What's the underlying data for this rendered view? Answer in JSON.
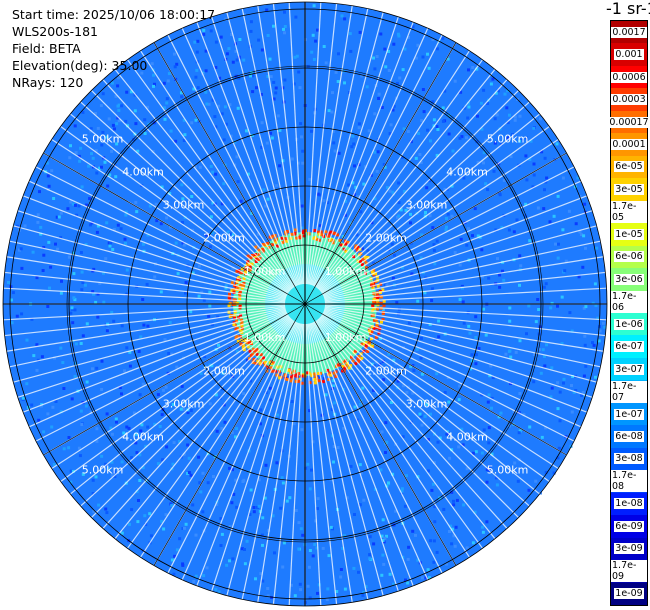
{
  "header": {
    "start_time": "Start time: 2025/10/06 18:00:17",
    "instrument": "WLS200s-181",
    "field": "Field: BETA",
    "elevation": "Elevation(deg): 35.00",
    "nrays": "NRays: 120"
  },
  "colorbar": {
    "title": "-1 sr-1",
    "ticks": [
      "0.0017",
      "0.001",
      "0.0006",
      "0.0003",
      "0.00017",
      "0.0001",
      "6e-05",
      "3e-05",
      "1.7e-05",
      "1e-05",
      "6e-06",
      "3e-06",
      "1.7e-06",
      "1e-06",
      "6e-07",
      "3e-07",
      "1.7e-07",
      "1e-07",
      "6e-08",
      "3e-08",
      "1.7e-08",
      "1e-08",
      "6e-09",
      "3e-09",
      "1.7e-09",
      "1e-09"
    ],
    "colors": [
      "#b20000",
      "#d80000",
      "#ff0000",
      "#ff3c00",
      "#ff6e00",
      "#ff9600",
      "#ffb400",
      "#ffd200",
      "#ffee00",
      "#e6ff14",
      "#b4ff4b",
      "#87ff78",
      "#5affa5",
      "#2dffd2",
      "#00f0ff",
      "#00d2ff",
      "#00b4ff",
      "#0096ff",
      "#0078ff",
      "#005aff",
      "#003cff",
      "#001eff",
      "#0000e6",
      "#0000c8",
      "#0000aa",
      "#000082"
    ]
  },
  "rings": {
    "labels": [
      "1.00km",
      "2.00km",
      "3.00km",
      "4.00km",
      "5.00km"
    ]
  }
}
